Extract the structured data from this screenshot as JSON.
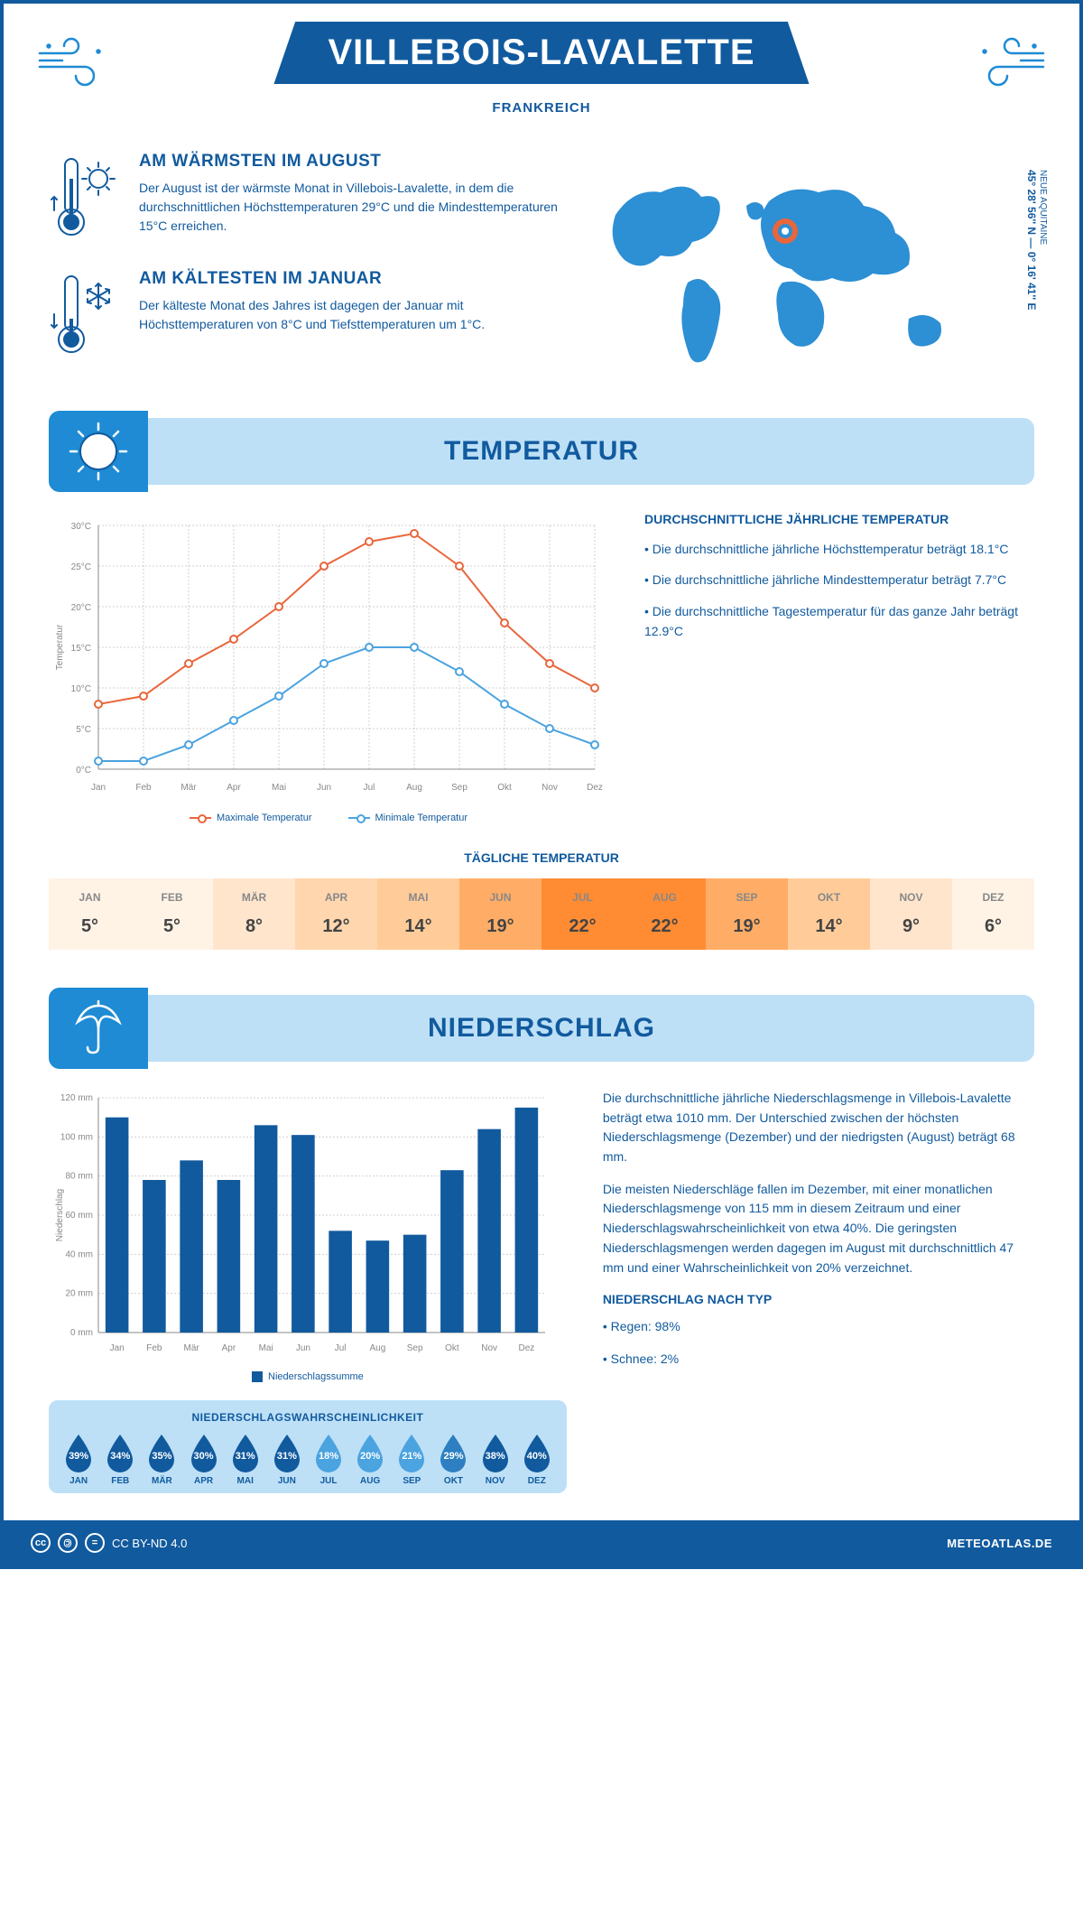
{
  "header": {
    "title": "VILLEBOIS-LAVALETTE",
    "country": "FRANKREICH"
  },
  "location": {
    "coords": "45° 28' 56'' N — 0° 16' 41'' E",
    "region": "NEUE AQUITAINE"
  },
  "facts": {
    "warm": {
      "title": "AM WÄRMSTEN IM AUGUST",
      "text": "Der August ist der wärmste Monat in Villebois-Lavalette, in dem die durchschnittlichen Höchsttemperaturen 29°C und die Mindesttemperaturen 15°C erreichen."
    },
    "cold": {
      "title": "AM KÄLTESTEN IM JANUAR",
      "text": "Der kälteste Monat des Jahres ist dagegen der Januar mit Höchsttemperaturen von 8°C und Tiefsttemperaturen um 1°C."
    }
  },
  "temp_section": {
    "title": "TEMPERATUR",
    "summary_title": "DURCHSCHNITTLICHE JÄHRLICHE TEMPERATUR",
    "bullet1": "• Die durchschnittliche jährliche Höchsttemperatur beträgt 18.1°C",
    "bullet2": "• Die durchschnittliche jährliche Mindesttemperatur beträgt 7.7°C",
    "bullet3": "• Die durchschnittliche Tagestemperatur für das ganze Jahr beträgt 12.9°C",
    "legend_max": "Maximale Temperatur",
    "legend_min": "Minimale Temperatur",
    "y_label": "Temperatur"
  },
  "temp_chart": {
    "months": [
      "Jan",
      "Feb",
      "Mär",
      "Apr",
      "Mai",
      "Jun",
      "Jul",
      "Aug",
      "Sep",
      "Okt",
      "Nov",
      "Dez"
    ],
    "max_values": [
      8,
      9,
      13,
      16,
      20,
      25,
      28,
      29,
      25,
      18,
      13,
      10
    ],
    "min_values": [
      1,
      1,
      3,
      6,
      9,
      13,
      15,
      15,
      12,
      8,
      5,
      3
    ],
    "y_ticks": [
      0,
      5,
      10,
      15,
      20,
      25,
      30
    ],
    "y_labels": [
      "0°C",
      "5°C",
      "10°C",
      "15°C",
      "20°C",
      "25°C",
      "30°C"
    ],
    "max_color": "#e8663c",
    "min_color": "#4ba3e0",
    "grid_color": "#d0d0d0",
    "axis_color": "#888"
  },
  "daily_temp": {
    "title": "TÄGLICHE TEMPERATUR",
    "months": [
      "JAN",
      "FEB",
      "MÄR",
      "APR",
      "MAI",
      "JUN",
      "JUL",
      "AUG",
      "SEP",
      "OKT",
      "NOV",
      "DEZ"
    ],
    "values": [
      "5°",
      "5°",
      "8°",
      "12°",
      "14°",
      "19°",
      "22°",
      "22°",
      "19°",
      "14°",
      "9°",
      "6°"
    ],
    "colors": [
      "#fff3e6",
      "#fff3e6",
      "#ffe5cc",
      "#ffd6ad",
      "#ffcc99",
      "#ffad66",
      "#ff8c33",
      "#ff8c33",
      "#ffad66",
      "#ffcc99",
      "#ffe5cc",
      "#fff3e6"
    ]
  },
  "precip_section": {
    "title": "NIEDERSCHLAG",
    "para1": "Die durchschnittliche jährliche Niederschlagsmenge in Villebois-Lavalette beträgt etwa 1010 mm. Der Unterschied zwischen der höchsten Niederschlagsmenge (Dezember) und der niedrigsten (August) beträgt 68 mm.",
    "para2": "Die meisten Niederschläge fallen im Dezember, mit einer monatlichen Niederschlagsmenge von 115 mm in diesem Zeitraum und einer Niederschlagswahrscheinlichkeit von etwa 40%. Die geringsten Niederschlagsmengen werden dagegen im August mit durchschnittlich 47 mm und einer Wahrscheinlichkeit von 20% verzeichnet.",
    "type_title": "NIEDERSCHLAG NACH TYP",
    "type1": "• Regen: 98%",
    "type2": "• Schnee: 2%",
    "legend": "Niederschlagssumme",
    "y_label": "Niederschlag"
  },
  "precip_chart": {
    "months": [
      "Jan",
      "Feb",
      "Mär",
      "Apr",
      "Mai",
      "Jun",
      "Jul",
      "Aug",
      "Sep",
      "Okt",
      "Nov",
      "Dez"
    ],
    "values": [
      110,
      78,
      88,
      78,
      106,
      101,
      52,
      47,
      50,
      83,
      104,
      115
    ],
    "y_ticks": [
      0,
      20,
      40,
      60,
      80,
      100,
      120
    ],
    "y_labels": [
      "0 mm",
      "20 mm",
      "40 mm",
      "60 mm",
      "80 mm",
      "100 mm",
      "120 mm"
    ],
    "bar_color": "#115a9e",
    "grid_color": "#d0d0d0"
  },
  "probability": {
    "title": "NIEDERSCHLAGSWAHRSCHEINLICHKEIT",
    "months": [
      "JAN",
      "FEB",
      "MÄR",
      "APR",
      "MAI",
      "JUN",
      "JUL",
      "AUG",
      "SEP",
      "OKT",
      "NOV",
      "DEZ"
    ],
    "values": [
      "39%",
      "34%",
      "35%",
      "30%",
      "31%",
      "31%",
      "18%",
      "20%",
      "21%",
      "29%",
      "38%",
      "40%"
    ],
    "colors": [
      "#115a9e",
      "#115a9e",
      "#115a9e",
      "#115a9e",
      "#115a9e",
      "#115a9e",
      "#4ba3e0",
      "#4ba3e0",
      "#4ba3e0",
      "#2d7fc1",
      "#115a9e",
      "#115a9e"
    ]
  },
  "footer": {
    "license": "CC BY-ND 4.0",
    "site": "METEOATLAS.DE"
  }
}
